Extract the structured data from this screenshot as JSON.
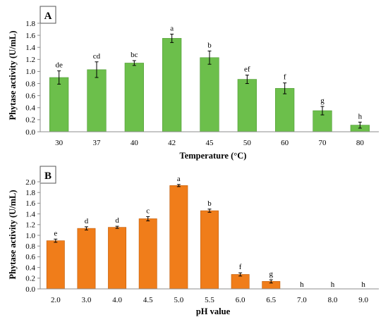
{
  "chart_data": [
    {
      "type": "bar",
      "panel": "A",
      "categories": [
        "30",
        "37",
        "40",
        "42",
        "45",
        "50",
        "60",
        "70",
        "80"
      ],
      "values": [
        0.9,
        1.03,
        1.14,
        1.55,
        1.23,
        0.87,
        0.72,
        0.35,
        0.11
      ],
      "errors": [
        0.11,
        0.13,
        0.04,
        0.07,
        0.11,
        0.07,
        0.09,
        0.07,
        0.05
      ],
      "letters": [
        "de",
        "cd",
        "bc",
        "a",
        "b",
        "ef",
        "f",
        "g",
        "h"
      ],
      "xlabel": "Temperature (°C)",
      "ylabel": "Phytase activity (U/mL)",
      "ylim": [
        0,
        1.8
      ],
      "yticks": [
        "0.0",
        "0.2",
        "0.4",
        "0.6",
        "0.8",
        "1.0",
        "1.2",
        "1.4",
        "1.6",
        "1.8"
      ],
      "color": "#6cbf4b",
      "stroke": "#4f9a34",
      "grid": false
    },
    {
      "type": "bar",
      "panel": "B",
      "categories": [
        "2.0",
        "3.0",
        "4.0",
        "4.5",
        "5.0",
        "5.5",
        "6.0",
        "6.5",
        "7.0",
        "8.0",
        "9.0"
      ],
      "values": [
        0.9,
        1.13,
        1.15,
        1.31,
        1.93,
        1.46,
        0.27,
        0.14,
        0,
        0,
        0
      ],
      "errors": [
        0.03,
        0.03,
        0.02,
        0.04,
        0.02,
        0.03,
        0.03,
        0.03,
        0,
        0,
        0
      ],
      "letters": [
        "e",
        "d",
        "d",
        "c",
        "a",
        "b",
        "f",
        "g",
        "h",
        "h",
        "h"
      ],
      "xlabel": "pH value",
      "ylabel": "Phytase activity (U/mL)",
      "ylim": [
        0,
        2.0
      ],
      "yticks": [
        "0.0",
        "0.2",
        "0.4",
        "0.6",
        "0.8",
        "1.0",
        "1.2",
        "1.4",
        "1.6",
        "1.8",
        "2.0"
      ],
      "color": "#f07d1a",
      "stroke": "#c05c08",
      "grid": false
    }
  ]
}
